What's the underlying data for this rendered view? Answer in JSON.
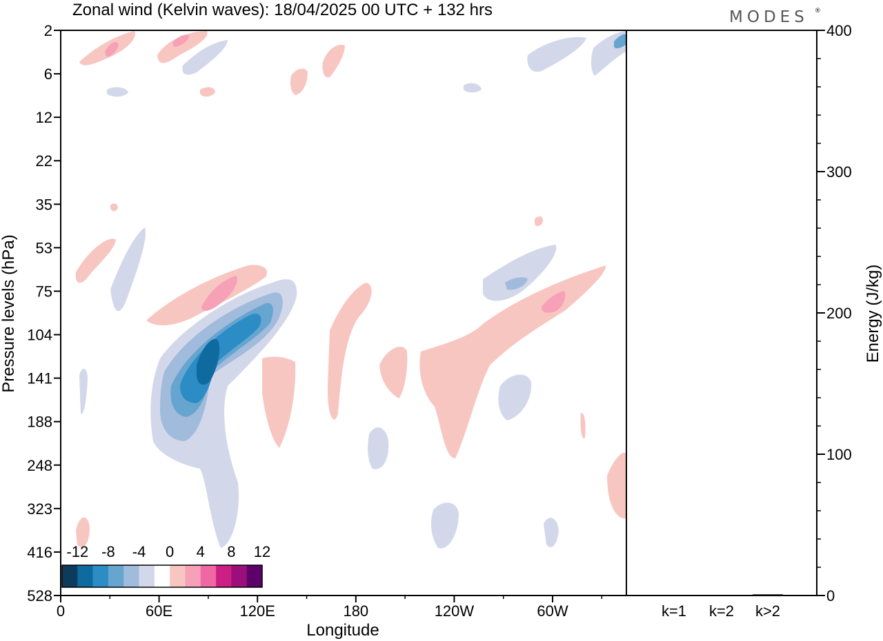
{
  "title": "Zonal wind (Kelvin waves):  18/04/2025  00 UTC  + 132 hrs",
  "brand": "MODES",
  "brand_mark": "®",
  "chart_data": [
    {
      "type": "heatmap",
      "title": "Zonal wind (Kelvin waves):  18/04/2025  00 UTC  + 132 hrs",
      "xlabel": "Longitude",
      "ylabel": "Pressure levels (hPa)",
      "x_ticks": [
        "0",
        "60E",
        "120E",
        "180",
        "120W",
        "60W"
      ],
      "x_tick_values": [
        0,
        60,
        120,
        180,
        240,
        300
      ],
      "xlim": [
        0,
        345
      ],
      "y_ticks": [
        "2",
        "6",
        "12",
        "22",
        "35",
        "53",
        "75",
        "104",
        "141",
        "188",
        "248",
        "323",
        "416",
        "528"
      ],
      "y_scale": "model levels (non-uniform)",
      "colorbar": {
        "tick_labels": [
          "-12",
          "-8",
          "-4",
          "0",
          "4",
          "8",
          "12"
        ],
        "levels": [
          -14,
          -12,
          -10,
          -8,
          -6,
          -4,
          -2,
          2,
          4,
          6,
          8,
          10,
          12,
          14
        ],
        "colors": [
          "#0d3b5c",
          "#0f6aa0",
          "#2c8cc5",
          "#66a5cf",
          "#a1bbdc",
          "#d3d7ea",
          "#ffffff",
          "#f8c6c1",
          "#f7a1b8",
          "#ef68a4",
          "#cb1f86",
          "#9c0e79",
          "#5c0169"
        ]
      },
      "features": [
        {
          "sign": "negative",
          "peak": -12,
          "lon": 90,
          "level": "141",
          "desc": "strongest easterly anomaly, tilting east-upward to 120E near 75-104 hPa"
        },
        {
          "sign": "positive",
          "peak": 8,
          "lon": 100,
          "level": "75",
          "desc": "westerly anomaly above the easterly core"
        },
        {
          "sign": "positive",
          "peak": 4,
          "lon": 235,
          "level": "141",
          "desc": "broad weak westerly band tilting east to 60W-30W near 75-104 hPa"
        },
        {
          "sign": "positive",
          "peak": 8,
          "lon": 300,
          "level": "75",
          "desc": "westerly maximum near 60W-30W"
        },
        {
          "sign": "negative",
          "peak": -8,
          "lon": 284,
          "level": "75",
          "desc": "easterly patch near 75 hPa, 80W"
        }
      ]
    },
    {
      "type": "bar",
      "ylabel": "Energy (J/kg)",
      "categories": [
        "k=1",
        "k=2",
        "k>2"
      ],
      "values": [
        0.3,
        0.3,
        0.8
      ],
      "ylim": [
        0,
        400
      ],
      "y_ticks": [
        "0",
        "100",
        "200",
        "300",
        "400"
      ]
    }
  ],
  "colors": {
    "frame": "#000000",
    "background": "#ffffff"
  }
}
